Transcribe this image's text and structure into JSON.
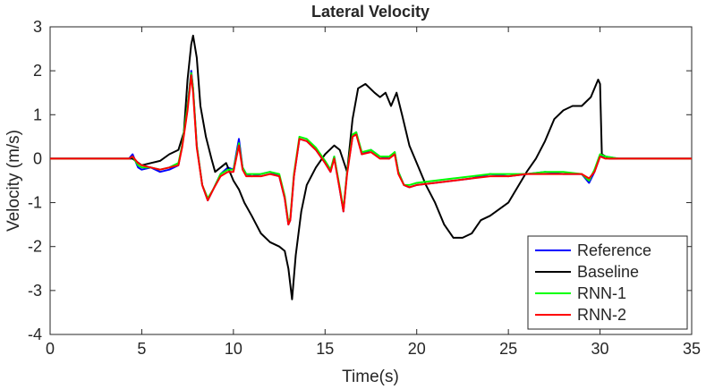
{
  "chart_data": {
    "type": "line",
    "title": "Lateral Velocity",
    "xlabel": "Time(s)",
    "ylabel": "Velocity (m/s)",
    "xlim": [
      0,
      35
    ],
    "ylim": [
      -4,
      3
    ],
    "xticks": [
      0,
      5,
      10,
      15,
      20,
      25,
      30,
      35
    ],
    "yticks": [
      -4,
      -3,
      -2,
      -1,
      0,
      1,
      2,
      3
    ],
    "xtick_labels": [
      "0",
      "5",
      "10",
      "15",
      "20",
      "25",
      "30",
      "35"
    ],
    "ytick_labels": [
      "-4",
      "-3",
      "-2",
      "-1",
      "0",
      "1",
      "2",
      "3"
    ],
    "grid": false,
    "legend_position": "bottom-right",
    "series": [
      {
        "name": "Reference",
        "color": "#0000ff",
        "x": [
          0,
          4.3,
          4.5,
          4.6,
          4.8,
          5.0,
          5.5,
          6.0,
          6.5,
          7.0,
          7.2,
          7.5,
          7.7,
          7.8,
          8.0,
          8.3,
          8.6,
          8.9,
          9.3,
          9.7,
          10.0,
          10.3,
          10.5,
          10.7,
          11.0,
          11.5,
          12.0,
          12.5,
          12.8,
          13.0,
          13.1,
          13.3,
          13.6,
          14.0,
          14.5,
          15.0,
          15.3,
          15.5,
          15.8,
          16.0,
          16.2,
          16.5,
          16.7,
          17.0,
          17.5,
          18.0,
          18.5,
          18.8,
          19.0,
          19.3,
          19.6,
          20.0,
          21.0,
          22.0,
          23.0,
          24.0,
          25.0,
          26.0,
          27.0,
          28.0,
          29.0,
          29.4,
          29.7,
          30.0,
          30.3,
          31.0,
          32.0,
          33.0,
          34.0,
          35.0
        ],
        "y": [
          0,
          0,
          0.1,
          0.0,
          -0.2,
          -0.25,
          -0.2,
          -0.3,
          -0.25,
          -0.15,
          0.3,
          1.2,
          2.0,
          1.6,
          0.3,
          -0.6,
          -0.95,
          -0.7,
          -0.35,
          -0.2,
          -0.25,
          0.45,
          -0.2,
          -0.35,
          -0.4,
          -0.35,
          -0.3,
          -0.4,
          -0.9,
          -1.5,
          -1.4,
          -0.4,
          0.45,
          0.4,
          0.2,
          -0.1,
          -0.3,
          0.05,
          -0.7,
          -1.2,
          -0.3,
          0.5,
          0.6,
          0.1,
          0.2,
          0.05,
          0.0,
          0.15,
          -0.3,
          -0.6,
          -0.65,
          -0.6,
          -0.55,
          -0.5,
          -0.45,
          -0.35,
          -0.4,
          -0.35,
          -0.3,
          -0.35,
          -0.35,
          -0.55,
          -0.3,
          0.05,
          0.05,
          0.0,
          0.0,
          0.0,
          0.0,
          0.0
        ]
      },
      {
        "name": "Baseline",
        "color": "#000000",
        "x": [
          0,
          4.5,
          5.0,
          5.5,
          6.0,
          6.5,
          7.0,
          7.3,
          7.5,
          7.7,
          7.8,
          8.0,
          8.2,
          8.5,
          8.8,
          9.0,
          9.3,
          9.6,
          10.0,
          10.3,
          10.6,
          11.0,
          11.5,
          12.0,
          12.5,
          12.8,
          13.0,
          13.2,
          13.4,
          13.7,
          14.0,
          14.5,
          15.0,
          15.5,
          15.8,
          16.2,
          16.5,
          16.8,
          17.2,
          17.7,
          18.0,
          18.3,
          18.6,
          18.9,
          19.2,
          19.6,
          20.0,
          20.5,
          21.0,
          21.5,
          22.0,
          22.5,
          23.0,
          23.5,
          24.0,
          25.0,
          26.0,
          26.5,
          27.0,
          27.5,
          28.0,
          28.5,
          29.0,
          29.5,
          29.9,
          30.0,
          30.1,
          30.5,
          31.0,
          32.0,
          33.0,
          35.0
        ],
        "y": [
          0,
          0.0,
          -0.15,
          -0.1,
          -0.05,
          0.1,
          0.2,
          0.6,
          1.8,
          2.6,
          2.8,
          2.3,
          1.2,
          0.5,
          0.0,
          -0.3,
          -0.2,
          -0.1,
          -0.5,
          -0.7,
          -1.0,
          -1.3,
          -1.7,
          -1.9,
          -2.0,
          -2.1,
          -2.5,
          -3.2,
          -2.2,
          -1.2,
          -0.6,
          -0.2,
          0.1,
          0.3,
          0.2,
          -0.3,
          0.9,
          1.6,
          1.7,
          1.5,
          1.4,
          1.5,
          1.2,
          1.5,
          1.0,
          0.3,
          -0.1,
          -0.6,
          -1.0,
          -1.5,
          -1.8,
          -1.8,
          -1.7,
          -1.4,
          -1.3,
          -1.0,
          -0.3,
          0.0,
          0.4,
          0.9,
          1.1,
          1.2,
          1.2,
          1.4,
          1.8,
          1.7,
          0.1,
          0.0,
          0.0,
          0.0,
          0.0,
          0.0
        ]
      },
      {
        "name": "RNN-1",
        "color": "#00ff00",
        "x": [
          0,
          4.3,
          4.5,
          4.8,
          5.0,
          5.5,
          6.0,
          6.5,
          7.0,
          7.2,
          7.5,
          7.7,
          7.8,
          8.0,
          8.3,
          8.6,
          8.9,
          9.3,
          9.7,
          10.0,
          10.3,
          10.5,
          10.7,
          11.0,
          11.5,
          12.0,
          12.5,
          12.8,
          13.0,
          13.1,
          13.3,
          13.6,
          14.0,
          14.5,
          15.0,
          15.3,
          15.5,
          15.8,
          16.0,
          16.2,
          16.5,
          16.7,
          17.0,
          17.5,
          18.0,
          18.5,
          18.8,
          19.0,
          19.3,
          19.6,
          20.0,
          21.0,
          22.0,
          23.0,
          24.0,
          25.0,
          26.0,
          27.0,
          28.0,
          29.0,
          29.4,
          29.7,
          30.0,
          30.3,
          31.0,
          35.0
        ],
        "y": [
          0,
          0,
          0.05,
          -0.15,
          -0.2,
          -0.2,
          -0.25,
          -0.2,
          -0.1,
          0.3,
          1.2,
          1.95,
          1.6,
          0.3,
          -0.6,
          -0.9,
          -0.7,
          -0.35,
          -0.25,
          -0.25,
          0.35,
          -0.2,
          -0.35,
          -0.35,
          -0.35,
          -0.3,
          -0.35,
          -0.85,
          -1.45,
          -1.35,
          -0.35,
          0.5,
          0.45,
          0.25,
          -0.05,
          -0.25,
          0.05,
          -0.65,
          -1.15,
          -0.3,
          0.55,
          0.6,
          0.15,
          0.2,
          0.05,
          0.05,
          0.15,
          -0.3,
          -0.6,
          -0.6,
          -0.55,
          -0.5,
          -0.45,
          -0.4,
          -0.35,
          -0.35,
          -0.35,
          -0.3,
          -0.3,
          -0.35,
          -0.5,
          -0.25,
          0.1,
          0.05,
          0.0,
          0.0
        ]
      },
      {
        "name": "RNN-2",
        "color": "#ff0000",
        "x": [
          0,
          4.3,
          4.5,
          4.8,
          5.0,
          5.5,
          6.0,
          6.5,
          7.0,
          7.2,
          7.5,
          7.7,
          7.8,
          8.0,
          8.3,
          8.6,
          8.9,
          9.3,
          9.7,
          10.0,
          10.3,
          10.5,
          10.7,
          11.0,
          11.5,
          12.0,
          12.5,
          12.8,
          13.0,
          13.1,
          13.3,
          13.6,
          14.0,
          14.5,
          15.0,
          15.3,
          15.5,
          15.8,
          16.0,
          16.2,
          16.5,
          16.7,
          17.0,
          17.5,
          18.0,
          18.5,
          18.8,
          19.0,
          19.3,
          19.6,
          20.0,
          21.0,
          22.0,
          23.0,
          24.0,
          25.0,
          26.0,
          27.0,
          28.0,
          29.0,
          29.4,
          29.7,
          30.0,
          30.3,
          31.0,
          35.0
        ],
        "y": [
          0,
          0,
          0.05,
          -0.1,
          -0.15,
          -0.2,
          -0.25,
          -0.2,
          -0.15,
          0.25,
          1.1,
          1.9,
          1.5,
          0.25,
          -0.6,
          -0.95,
          -0.7,
          -0.4,
          -0.3,
          -0.3,
          0.3,
          -0.25,
          -0.4,
          -0.4,
          -0.4,
          -0.35,
          -0.4,
          -0.9,
          -1.5,
          -1.4,
          -0.4,
          0.45,
          0.4,
          0.2,
          -0.1,
          -0.3,
          0.0,
          -0.7,
          -1.2,
          -0.35,
          0.5,
          0.55,
          0.1,
          0.15,
          0.0,
          0.0,
          0.1,
          -0.35,
          -0.6,
          -0.65,
          -0.6,
          -0.55,
          -0.5,
          -0.45,
          -0.4,
          -0.4,
          -0.35,
          -0.35,
          -0.35,
          -0.35,
          -0.45,
          -0.3,
          0.05,
          0.0,
          0.0,
          0.0
        ]
      }
    ]
  }
}
